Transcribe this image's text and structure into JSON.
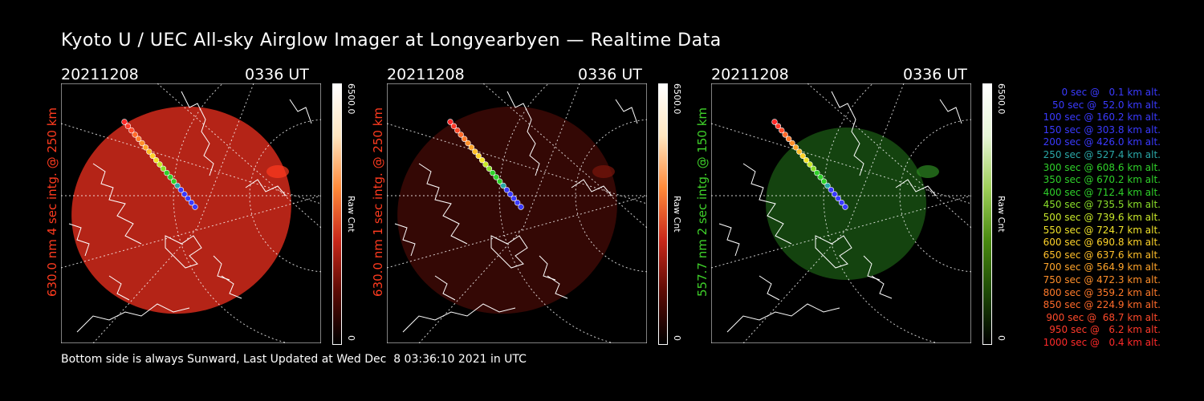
{
  "title": "Kyoto U / UEC All-sky Airglow Imager at Longyearbyen — Realtime Data",
  "panels": [
    {
      "date": "20211208",
      "time": "0336 UT",
      "ylabel": "630.0 nm 4 sec intg. @ 250 km",
      "label_color": "#ff3b1f",
      "cb_max": "6500.0",
      "cb_min": "0",
      "cb_unit": "Raw Cnt",
      "tone": "#c8281a",
      "glow": "#ff3b1f"
    },
    {
      "date": "20211208",
      "time": "0336 UT",
      "ylabel": "630.0 nm 1 sec intg. @ 250 km",
      "label_color": "#ff3b1f",
      "cb_max": "6500.0",
      "cb_min": "0",
      "cb_unit": "Raw Cnt",
      "tone": "#3a0906",
      "glow": "#7a160c"
    },
    {
      "date": "20211208",
      "time": "0336 UT",
      "ylabel": "557.7 nm 2 sec intg. @ 150 km",
      "label_color": "#3fd12a",
      "cb_max": "6500.0",
      "cb_min": "0",
      "cb_unit": "Raw Cnt",
      "tone": "#174f12",
      "glow": "#2e8a22"
    }
  ],
  "legend": [
    {
      "text": "0 sec @   0.1 km alt.",
      "color": "#3a3aff"
    },
    {
      "text": "50 sec @  52.0 km alt.",
      "color": "#3a3aff"
    },
    {
      "text": "100 sec @ 160.2 km alt.",
      "color": "#3a3aff"
    },
    {
      "text": "150 sec @ 303.8 km alt.",
      "color": "#3a3aff"
    },
    {
      "text": "200 sec @ 426.0 km alt.",
      "color": "#3a3aff"
    },
    {
      "text": "250 sec @ 527.4 km alt.",
      "color": "#2aa8a8"
    },
    {
      "text": "300 sec @ 608.6 km alt.",
      "color": "#2fd12a"
    },
    {
      "text": "350 sec @ 670.2 km alt.",
      "color": "#2fd12a"
    },
    {
      "text": "400 sec @ 712.4 km alt.",
      "color": "#2fd12a"
    },
    {
      "text": "450 sec @ 735.5 km alt.",
      "color": "#8adf2a"
    },
    {
      "text": "500 sec @ 739.6 km alt.",
      "color": "#c8e82a"
    },
    {
      "text": "550 sec @ 724.7 km alt.",
      "color": "#f0e22a"
    },
    {
      "text": "600 sec @ 690.8 km alt.",
      "color": "#ffd42a"
    },
    {
      "text": "650 sec @ 637.6 km alt.",
      "color": "#ffbf2a"
    },
    {
      "text": "700 sec @ 564.9 km alt.",
      "color": "#ffa52a"
    },
    {
      "text": "750 sec @ 472.3 km alt.",
      "color": "#ff8f2a"
    },
    {
      "text": "800 sec @ 359.2 km alt.",
      "color": "#ff7a2a"
    },
    {
      "text": "850 sec @ 224.9 km alt.",
      "color": "#ff6a2a"
    },
    {
      "text": "900 sec @  68.7 km alt.",
      "color": "#ff4a2a"
    },
    {
      "text": "950 sec @   6.2 km alt.",
      "color": "#ff3a2a"
    },
    {
      "text": "1000 sec @   0.4 km alt.",
      "color": "#ff2a2a"
    }
  ],
  "footer": "Bottom side is always Sunward, Last Updated at Wed Dec  8 03:36:10 2021 in UTC"
}
